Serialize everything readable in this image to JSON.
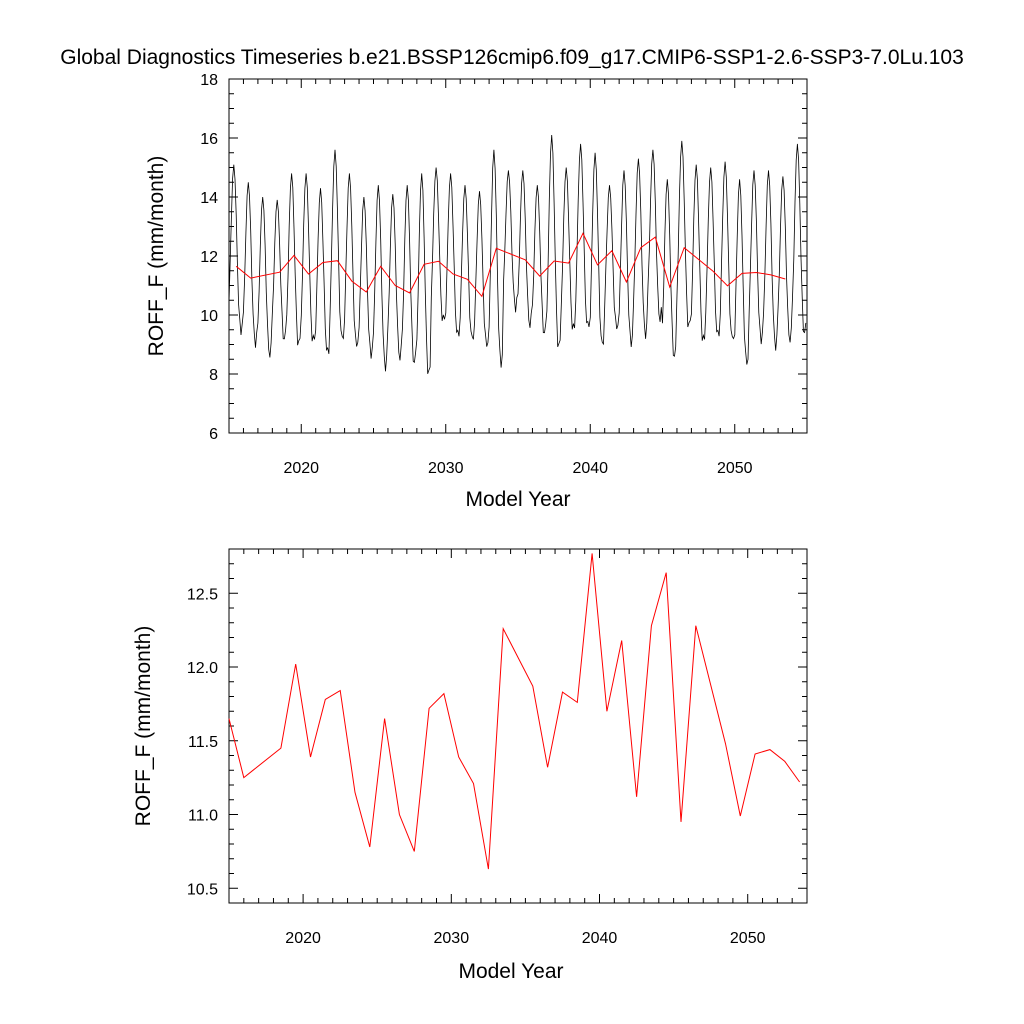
{
  "title": "Global Diagnostics Timeseries b.e21.BSSP126cmip6.f09_g17.CMIP6-SSP1-2.6-SSP3-7.0Lu.103",
  "colors": {
    "monthly": "#000000",
    "annual": "#ff0000"
  },
  "chart_data": [
    {
      "type": "line",
      "xlabel": "Model Year",
      "ylabel": "ROFF_F (mm/month)",
      "xlim": [
        2015,
        2055
      ],
      "ylim": [
        6,
        18
      ],
      "x_ticks": [
        2020,
        2030,
        2040,
        2050
      ],
      "y_ticks": [
        6,
        8,
        10,
        12,
        14,
        16,
        18
      ],
      "x_tick_labels": [
        "2020",
        "2030",
        "2040",
        "2050"
      ],
      "y_tick_labels": [
        "6",
        "8",
        "10",
        "12",
        "14",
        "16",
        "18"
      ],
      "monthly_cycle": {
        "x_start": 2015.0,
        "x_end": 2055.0,
        "points_per_year": 12,
        "years": [
          2015,
          2016,
          2017,
          2018,
          2019,
          2020,
          2021,
          2022,
          2023,
          2024,
          2025,
          2026,
          2027,
          2028,
          2029,
          2030,
          2031,
          2032,
          2033,
          2034,
          2035,
          2036,
          2037,
          2038,
          2039,
          2040,
          2041,
          2042,
          2043,
          2044,
          2045,
          2046,
          2047,
          2048,
          2049,
          2050,
          2051,
          2052,
          2053,
          2054
        ],
        "year_max": [
          15.1,
          14.5,
          14.0,
          13.9,
          14.8,
          14.8,
          14.3,
          15.6,
          14.8,
          14.0,
          14.4,
          14.1,
          14.4,
          14.8,
          15.0,
          14.8,
          14.4,
          14.2,
          15.6,
          14.9,
          14.9,
          14.4,
          16.1,
          15.0,
          15.8,
          15.5,
          14.4,
          14.9,
          15.3,
          15.6,
          14.6,
          15.9,
          15.1,
          15.0,
          15.2,
          14.6,
          14.9,
          14.9,
          14.7,
          15.8
        ],
        "year_min": [
          9.5,
          9.1,
          8.7,
          9.2,
          9.0,
          9.1,
          8.7,
          9.2,
          9.0,
          8.7,
          8.3,
          8.6,
          8.4,
          8.0,
          9.8,
          9.3,
          9.2,
          9.0,
          8.4,
          10.3,
          9.7,
          9.4,
          8.9,
          9.5,
          9.6,
          9.0,
          9.6,
          9.1,
          9.4,
          9.9,
          8.6,
          9.6,
          9.1,
          9.3,
          9.2,
          8.4,
          9.2,
          9.0,
          9.2,
          9.4
        ]
      },
      "series": [
        {
          "color": "#ff0000",
          "x": [
            2015.5,
            2016.5,
            2018.5,
            2019.5,
            2020.5,
            2021.5,
            2022.5,
            2023.5,
            2024.5,
            2025.5,
            2026.5,
            2027.5,
            2028.5,
            2029.5,
            2030.5,
            2031.5,
            2032.5,
            2033.5,
            2035.5,
            2036.5,
            2037.5,
            2038.5,
            2039.5,
            2040.5,
            2041.5,
            2042.5,
            2043.5,
            2044.5,
            2045.5,
            2046.5,
            2048.5,
            2049.5,
            2050.5,
            2051.5,
            2052.5,
            2053.5
          ],
          "y": [
            11.65,
            11.25,
            11.45,
            12.02,
            11.39,
            11.78,
            11.84,
            11.15,
            10.78,
            11.65,
            11.0,
            10.75,
            11.72,
            11.82,
            11.39,
            11.21,
            10.63,
            12.26,
            11.87,
            11.32,
            11.83,
            11.76,
            12.77,
            11.7,
            12.18,
            11.12,
            12.28,
            12.64,
            10.95,
            12.28,
            11.48,
            10.99,
            11.41,
            11.44,
            11.36,
            11.22
          ]
        }
      ]
    },
    {
      "type": "line",
      "xlabel": "Model Year",
      "ylabel": "ROFF_F (mm/month)",
      "xlim": [
        2015,
        2054
      ],
      "ylim": [
        10.4,
        12.8
      ],
      "x_ticks": [
        2020,
        2030,
        2040,
        2050
      ],
      "y_ticks": [
        10.5,
        11.0,
        11.5,
        12.0,
        12.5
      ],
      "x_tick_labels": [
        "2020",
        "2030",
        "2040",
        "2050"
      ],
      "y_tick_labels": [
        "10.5",
        "11.0",
        "11.5",
        "12.0",
        "12.5"
      ],
      "series": [
        {
          "color": "#ff0000",
          "x": [
            2015.0,
            2016.0,
            2018.5,
            2019.5,
            2020.5,
            2021.5,
            2022.5,
            2023.5,
            2024.5,
            2025.5,
            2026.5,
            2027.5,
            2028.5,
            2029.5,
            2030.5,
            2031.5,
            2032.5,
            2033.5,
            2035.5,
            2036.5,
            2037.5,
            2038.5,
            2039.5,
            2040.5,
            2041.5,
            2042.5,
            2043.5,
            2044.5,
            2045.5,
            2046.5,
            2048.5,
            2049.5,
            2050.5,
            2051.5,
            2052.5,
            2053.5
          ],
          "y": [
            11.65,
            11.25,
            11.45,
            12.02,
            11.39,
            11.78,
            11.84,
            11.15,
            10.78,
            11.65,
            11.0,
            10.75,
            11.72,
            11.82,
            11.39,
            11.21,
            10.63,
            12.26,
            11.87,
            11.32,
            11.83,
            11.76,
            12.77,
            11.7,
            12.18,
            11.12,
            12.28,
            12.64,
            10.95,
            12.28,
            11.48,
            10.99,
            11.41,
            11.44,
            11.36,
            11.22
          ]
        }
      ]
    }
  ]
}
